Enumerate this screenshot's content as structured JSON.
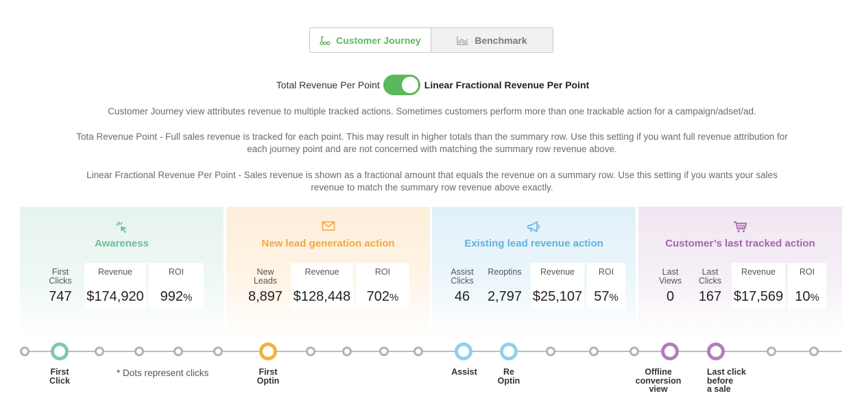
{
  "tabs": [
    {
      "label": "Customer Journey",
      "icon": "journey-icon",
      "active": true
    },
    {
      "label": "Benchmark",
      "icon": "chart-icon",
      "active": false
    }
  ],
  "toggle": {
    "left_label": "Total Revenue Per Point",
    "right_label": "Linear Fractional Revenue Per Point",
    "state": "on",
    "color": "#5cb85c"
  },
  "descriptions": [
    "Customer Journey view attributes revenue to multiple tracked actions. Sometimes customers perform more than one trackable action for a campaign/adset/ad.",
    "Tota Revenue Point - Full sales revenue is tracked for each point. This may result in higher totals than the summary row. Use this setting if you want full revenue attribution for each journey point and are not concerned with matching the summary row revenue above.",
    "Linear Fractional Revenue Per Point - Sales revenue is shown as a fractional amount that equals the revenue on a summary row. Use this setting if you wants your sales revenue to match the summary row revenue above exactly."
  ],
  "stages": [
    {
      "title": "Awareness",
      "icon": "cursor-click-icon",
      "color": "#6dbf9a",
      "metrics": [
        {
          "label1": "First",
          "label2": "Clicks",
          "value": "747",
          "suffix": ""
        },
        {
          "label1": "Revenue",
          "label2": "",
          "value": "$174,920",
          "suffix": ""
        },
        {
          "label1": "ROI",
          "label2": "",
          "value": "992",
          "suffix": "%"
        }
      ]
    },
    {
      "title": "New lead generation action",
      "icon": "envelope-icon",
      "color": "#f4a93c",
      "metrics": [
        {
          "label1": "New",
          "label2": "Leads",
          "value": "8,897",
          "suffix": ""
        },
        {
          "label1": "Revenue",
          "label2": "",
          "value": "$128,448",
          "suffix": ""
        },
        {
          "label1": "ROI",
          "label2": "",
          "value": "702",
          "suffix": "%"
        }
      ]
    },
    {
      "title": "Existing lead revenue action",
      "icon": "megaphone-icon",
      "color": "#5fb3de",
      "metrics": [
        {
          "label1": "Assist",
          "label2": "Clicks",
          "value": "46",
          "suffix": ""
        },
        {
          "label1": "Reoptins",
          "label2": "",
          "value": "2,797",
          "suffix": ""
        },
        {
          "label1": "Revenue",
          "label2": "",
          "value": "$25,107",
          "suffix": ""
        },
        {
          "label1": "ROI",
          "label2": "",
          "value": "57",
          "suffix": "%"
        }
      ]
    },
    {
      "title": "Customer’s last tracked action",
      "icon": "shopping-cart-icon",
      "color": "#a764b3",
      "metrics": [
        {
          "label1": "Last",
          "label2": "Views",
          "value": "0",
          "suffix": ""
        },
        {
          "label1": "Last",
          "label2": "Clicks",
          "value": "167",
          "suffix": ""
        },
        {
          "label1": "Revenue",
          "label2": "",
          "value": "$17,569",
          "suffix": ""
        },
        {
          "label1": "ROI",
          "label2": "",
          "value": "10",
          "suffix": "%"
        }
      ]
    }
  ],
  "timeline": {
    "note": "* Dots represent clicks",
    "labels": [
      {
        "lines": [
          "First",
          "Click"
        ]
      },
      {
        "lines": [
          "First",
          "Optin"
        ]
      },
      {
        "lines": [
          "Assist"
        ]
      },
      {
        "lines": [
          "Re",
          "Optin"
        ]
      },
      {
        "lines": [
          "Offline",
          "conversion",
          "view"
        ]
      },
      {
        "lines": [
          "Last click",
          "before",
          "a sale"
        ]
      }
    ]
  }
}
